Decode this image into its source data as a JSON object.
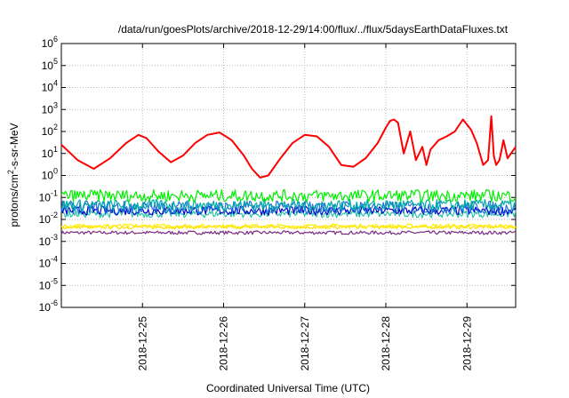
{
  "chart_data": {
    "type": "line",
    "title": "/data/run/goesPlots/archive/2018-12-29/14:00/flux/../flux/5daysEarthDataFluxes.txt",
    "xlabel": "Coordinated Universal Time (UTC)",
    "ylabel": "protons/cm²-s-sr-MeV",
    "y_scale": "log",
    "ylim": [
      1e-06,
      1000000.0
    ],
    "xlim_days": [
      0,
      5.6
    ],
    "x_ticks": [
      {
        "day": 1,
        "label": "2018-12-25"
      },
      {
        "day": 2,
        "label": "2018-12-26"
      },
      {
        "day": 3,
        "label": "2018-12-27"
      },
      {
        "day": 4,
        "label": "2018-12-28"
      },
      {
        "day": 5,
        "label": "2018-12-29"
      }
    ],
    "y_ticks": [
      {
        "exp": -6,
        "label": "10",
        "sup": "-6"
      },
      {
        "exp": -5,
        "label": "10",
        "sup": "-5"
      },
      {
        "exp": -4,
        "label": "10",
        "sup": "-4"
      },
      {
        "exp": -3,
        "label": "10",
        "sup": "-3"
      },
      {
        "exp": -2,
        "label": "10",
        "sup": "-2"
      },
      {
        "exp": -1,
        "label": "10",
        "sup": "-1"
      },
      {
        "exp": 0,
        "label": "10",
        "sup": "0"
      },
      {
        "exp": 1,
        "label": "10",
        "sup": "1"
      },
      {
        "exp": 2,
        "label": "10",
        "sup": "2"
      },
      {
        "exp": 3,
        "label": "10",
        "sup": "3"
      },
      {
        "exp": 4,
        "label": "10",
        "sup": "4"
      },
      {
        "exp": 5,
        "label": "10",
        "sup": "5"
      },
      {
        "exp": 6,
        "label": "10",
        "sup": "6"
      }
    ],
    "grid": true,
    "series": [
      {
        "color": "#ff0000",
        "x": [
          0.0,
          0.2,
          0.4,
          0.6,
          0.8,
          0.95,
          1.05,
          1.2,
          1.35,
          1.5,
          1.65,
          1.8,
          1.95,
          2.1,
          2.25,
          2.35,
          2.45,
          2.55,
          2.7,
          2.85,
          3.0,
          3.15,
          3.3,
          3.45,
          3.6,
          3.75,
          3.9,
          4.0,
          4.05,
          4.1,
          4.15,
          4.22,
          4.3,
          4.37,
          4.45,
          4.5,
          4.55,
          4.65,
          4.75,
          4.85,
          4.95,
          5.05,
          5.12,
          5.2,
          5.26,
          5.3,
          5.33,
          5.36,
          5.4,
          5.45,
          5.5,
          5.6
        ],
        "y": [
          25,
          5,
          2,
          6,
          30,
          70,
          50,
          12,
          4,
          8,
          30,
          70,
          90,
          40,
          8,
          2,
          0.8,
          1,
          6,
          30,
          70,
          60,
          20,
          3,
          2.5,
          6,
          30,
          150,
          300,
          350,
          250,
          10,
          100,
          5,
          20,
          3,
          15,
          40,
          60,
          100,
          350,
          120,
          30,
          3,
          5,
          500,
          8,
          3,
          5,
          40,
          6,
          20
        ]
      },
      {
        "color": "#00ee00",
        "level": 0.12,
        "spread": 1.9
      },
      {
        "color": "#00aaaa",
        "level": 0.045,
        "spread": 1.8
      },
      {
        "color": "#1f6fd6",
        "level": 0.035,
        "spread": 2.0
      },
      {
        "color": "#0000cc",
        "level": 0.025,
        "spread": 1.6
      },
      {
        "color": "#2bc4a8",
        "level": 0.018,
        "spread": 1.5
      },
      {
        "color": "#ffee00",
        "level": 0.005,
        "spread": 1.25
      },
      {
        "color": "#ffdd00",
        "level": 0.0045,
        "spread": 1.2
      },
      {
        "color": "#7b2c7e",
        "level": 0.0025,
        "spread": 1.2
      }
    ]
  }
}
